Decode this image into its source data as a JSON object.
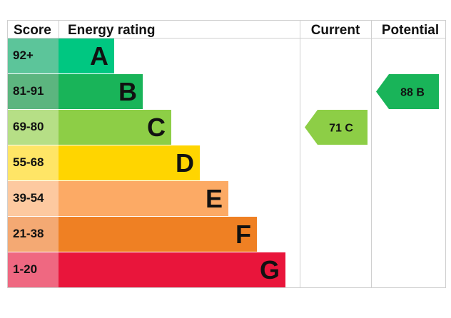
{
  "chart_data": {
    "type": "table",
    "headers": {
      "score": "Score",
      "rating": "Energy rating",
      "current": "Current",
      "potential": "Potential"
    },
    "bands": [
      {
        "letter": "A",
        "range": "92+",
        "color": "#00c781",
        "score_bg": "#5cc59a"
      },
      {
        "letter": "B",
        "range": "81-91",
        "color": "#19b459",
        "score_bg": "#5cb57f"
      },
      {
        "letter": "C",
        "range": "69-80",
        "color": "#8dce46",
        "score_bg": "#b6df86"
      },
      {
        "letter": "D",
        "range": "55-68",
        "color": "#ffd500",
        "score_bg": "#ffe566"
      },
      {
        "letter": "E",
        "range": "39-54",
        "color": "#fcaa65",
        "score_bg": "#fdc9a0"
      },
      {
        "letter": "F",
        "range": "21-38",
        "color": "#ef8023",
        "score_bg": "#f4a973"
      },
      {
        "letter": "G",
        "range": "1-20",
        "color": "#e9153b",
        "score_bg": "#ef6881"
      }
    ],
    "current": {
      "value": 71,
      "band": "C",
      "label": "71  C",
      "color": "#8dce46"
    },
    "potential": {
      "value": 88,
      "band": "B",
      "label": "88  B",
      "color": "#19b459"
    }
  }
}
